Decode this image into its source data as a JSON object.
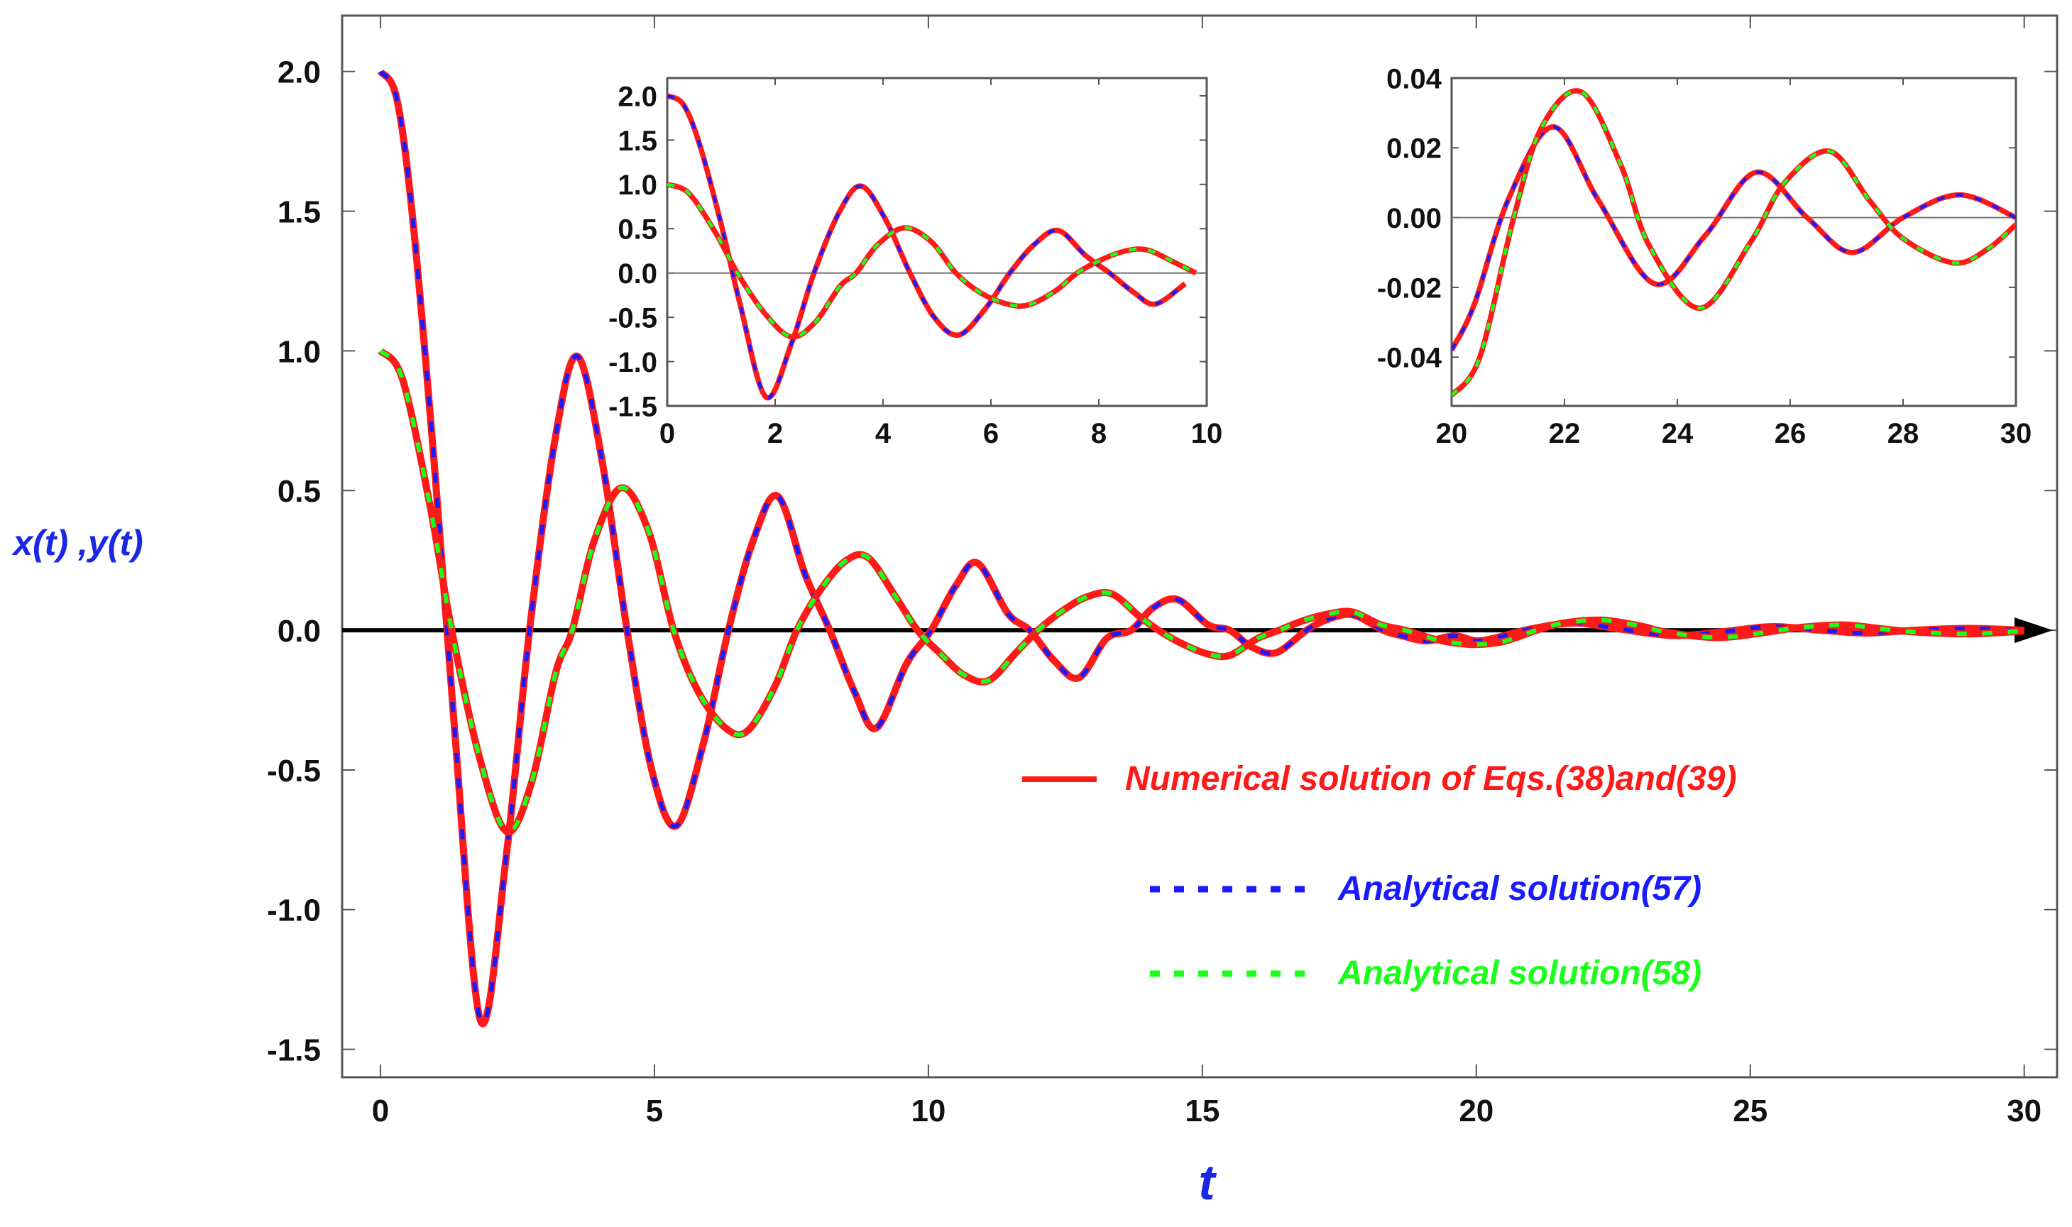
{
  "colors": {
    "numerical": "#ff1a1a",
    "analytical_57": "#1a1aff",
    "analytical_58": "#1aff1a",
    "axis_title": "#1a28e6",
    "frame": "#555555",
    "zero_axis": "#000000",
    "inset_zero_line": "#777777"
  },
  "legend": {
    "placement": "lower-right",
    "items": [
      {
        "key": "numerical",
        "label": "Numerical solution of Eqs.(38)and(39)",
        "style": "solid"
      },
      {
        "key": "analytical_57",
        "label": "Analytical solution(57)",
        "style": "dotted"
      },
      {
        "key": "analytical_58",
        "label": "Analytical solution(58)",
        "style": "dotted"
      }
    ]
  },
  "chart_data": [
    {
      "id": "main",
      "type": "line",
      "xlabel": "t",
      "ylabel": "x(t) ,y(t)",
      "xlim": [
        -0.7,
        30.6
      ],
      "ylim": [
        -1.6,
        2.2
      ],
      "xticks": [
        0,
        5,
        10,
        15,
        20,
        25,
        30
      ],
      "yticks": [
        -1.5,
        -1.0,
        -0.5,
        0.0,
        0.5,
        1.0,
        1.5,
        2.0
      ],
      "ytick_labels": [
        "-1.5",
        "-1.0",
        "-0.5",
        "0.0",
        "0.5",
        "1.0",
        "1.5",
        "2.0"
      ],
      "grid": false,
      "zero_axis_arrow": true,
      "series": [
        {
          "key": "x",
          "style": [
            "numerical",
            "analytical_57"
          ],
          "points": [
            [
              0,
              2.0
            ],
            [
              0.3,
              1.9
            ],
            [
              0.6,
              1.45
            ],
            [
              1.0,
              0.55
            ],
            [
              1.35,
              -0.35
            ],
            [
              1.83,
              -1.4
            ],
            [
              2.3,
              -0.8
            ],
            [
              2.72,
              0.0
            ],
            [
              3.2,
              0.7
            ],
            [
              3.6,
              0.98
            ],
            [
              4.05,
              0.6
            ],
            [
              4.5,
              0.0
            ],
            [
              4.95,
              -0.5
            ],
            [
              5.4,
              -0.7
            ],
            [
              5.9,
              -0.4
            ],
            [
              6.35,
              0.0
            ],
            [
              6.8,
              0.32
            ],
            [
              7.25,
              0.48
            ],
            [
              7.75,
              0.2
            ],
            [
              8.2,
              0.0
            ],
            [
              8.65,
              -0.22
            ],
            [
              9.05,
              -0.35
            ],
            [
              9.6,
              -0.12
            ],
            [
              10.05,
              0.0
            ],
            [
              10.5,
              0.16
            ],
            [
              10.9,
              0.24
            ],
            [
              11.45,
              0.06
            ],
            [
              11.85,
              0.0
            ],
            [
              12.3,
              -0.11
            ],
            [
              12.75,
              -0.17
            ],
            [
              13.25,
              -0.03
            ],
            [
              13.7,
              0.0
            ],
            [
              14.1,
              0.08
            ],
            [
              14.55,
              0.11
            ],
            [
              15.1,
              0.02
            ],
            [
              15.5,
              0.0
            ],
            [
              15.9,
              -0.06
            ],
            [
              16.35,
              -0.08
            ],
            [
              16.9,
              0.0
            ],
            [
              17.3,
              0.04
            ],
            [
              17.75,
              0.055
            ],
            [
              18.3,
              0.0
            ],
            [
              18.65,
              -0.02
            ],
            [
              19.1,
              -0.038
            ],
            [
              19.6,
              -0.02
            ],
            [
              20.0,
              -0.038
            ],
            [
              20.4,
              -0.025
            ],
            [
              21.0,
              0.005
            ],
            [
              21.8,
              0.026
            ],
            [
              22.6,
              0.005
            ],
            [
              23.6,
              -0.019
            ],
            [
              24.5,
              -0.005
            ],
            [
              25.4,
              0.013
            ],
            [
              26.3,
              0.0
            ],
            [
              27.1,
              -0.01
            ],
            [
              28.0,
              0.0
            ],
            [
              29.0,
              0.0065
            ],
            [
              30.0,
              0.0
            ]
          ]
        },
        {
          "key": "y",
          "style": [
            "numerical",
            "analytical_58"
          ],
          "points": [
            [
              0,
              1.0
            ],
            [
              0.4,
              0.9
            ],
            [
              0.9,
              0.45
            ],
            [
              1.3,
              0.0
            ],
            [
              1.8,
              -0.45
            ],
            [
              2.3,
              -0.72
            ],
            [
              2.75,
              -0.55
            ],
            [
              3.2,
              -0.15
            ],
            [
              3.5,
              0.0
            ],
            [
              3.9,
              0.32
            ],
            [
              4.4,
              0.51
            ],
            [
              4.9,
              0.35
            ],
            [
              5.35,
              0.0
            ],
            [
              5.8,
              -0.22
            ],
            [
              6.3,
              -0.35
            ],
            [
              6.7,
              -0.36
            ],
            [
              7.2,
              -0.2
            ],
            [
              7.6,
              0.0
            ],
            [
              8.05,
              0.15
            ],
            [
              8.5,
              0.25
            ],
            [
              8.9,
              0.26
            ],
            [
              9.4,
              0.12
            ],
            [
              9.8,
              0.0
            ],
            [
              10.2,
              -0.08
            ],
            [
              10.65,
              -0.16
            ],
            [
              11.1,
              -0.18
            ],
            [
              11.6,
              -0.08
            ],
            [
              12.0,
              0.0
            ],
            [
              12.45,
              0.07
            ],
            [
              12.9,
              0.12
            ],
            [
              13.35,
              0.13
            ],
            [
              13.85,
              0.05
            ],
            [
              14.2,
              0.0
            ],
            [
              14.65,
              -0.05
            ],
            [
              15.1,
              -0.085
            ],
            [
              15.5,
              -0.09
            ],
            [
              16.0,
              -0.03
            ],
            [
              16.4,
              0.0
            ],
            [
              16.85,
              0.035
            ],
            [
              17.35,
              0.06
            ],
            [
              17.75,
              0.065
            ],
            [
              18.25,
              0.02
            ],
            [
              18.7,
              0.0
            ],
            [
              19.2,
              -0.03
            ],
            [
              19.6,
              -0.045
            ],
            [
              20.0,
              -0.051
            ],
            [
              20.5,
              -0.04
            ],
            [
              21.1,
              0.0
            ],
            [
              21.6,
              0.026
            ],
            [
              22.3,
              0.036
            ],
            [
              23.0,
              0.015
            ],
            [
              23.5,
              -0.008
            ],
            [
              24.4,
              -0.026
            ],
            [
              25.3,
              -0.007
            ],
            [
              25.9,
              0.01
            ],
            [
              26.7,
              0.019
            ],
            [
              27.4,
              0.005
            ],
            [
              28.0,
              -0.006
            ],
            [
              28.9,
              -0.013
            ],
            [
              29.5,
              -0.009
            ],
            [
              30.0,
              -0.002
            ]
          ]
        }
      ]
    },
    {
      "id": "inset-left",
      "type": "line",
      "xlim": [
        0,
        10
      ],
      "ylim": [
        -1.5,
        2.2
      ],
      "xticks": [
        0,
        2,
        4,
        6,
        8,
        10
      ],
      "yticks": [
        -1.5,
        -1.0,
        -0.5,
        0.0,
        0.5,
        1.0,
        1.5,
        2.0
      ],
      "ytick_labels": [
        "-1.5",
        "-1.0",
        "-0.5",
        "0.0",
        "0.5",
        "1.0",
        "1.5",
        "2.0"
      ],
      "grid": false,
      "series_ref": "main",
      "series_range": [
        0,
        10
      ]
    },
    {
      "id": "inset-right",
      "type": "line",
      "xlim": [
        20,
        30
      ],
      "ylim": [
        -0.054,
        0.04
      ],
      "xticks": [
        20,
        22,
        24,
        26,
        28,
        30
      ],
      "yticks": [
        -0.04,
        -0.02,
        0.0,
        0.02,
        0.04
      ],
      "ytick_labels": [
        "-0.04",
        "-0.02",
        "0.00",
        "0.02",
        "0.04"
      ],
      "grid": false,
      "series_ref": "main",
      "series_range": [
        20,
        30
      ]
    }
  ]
}
